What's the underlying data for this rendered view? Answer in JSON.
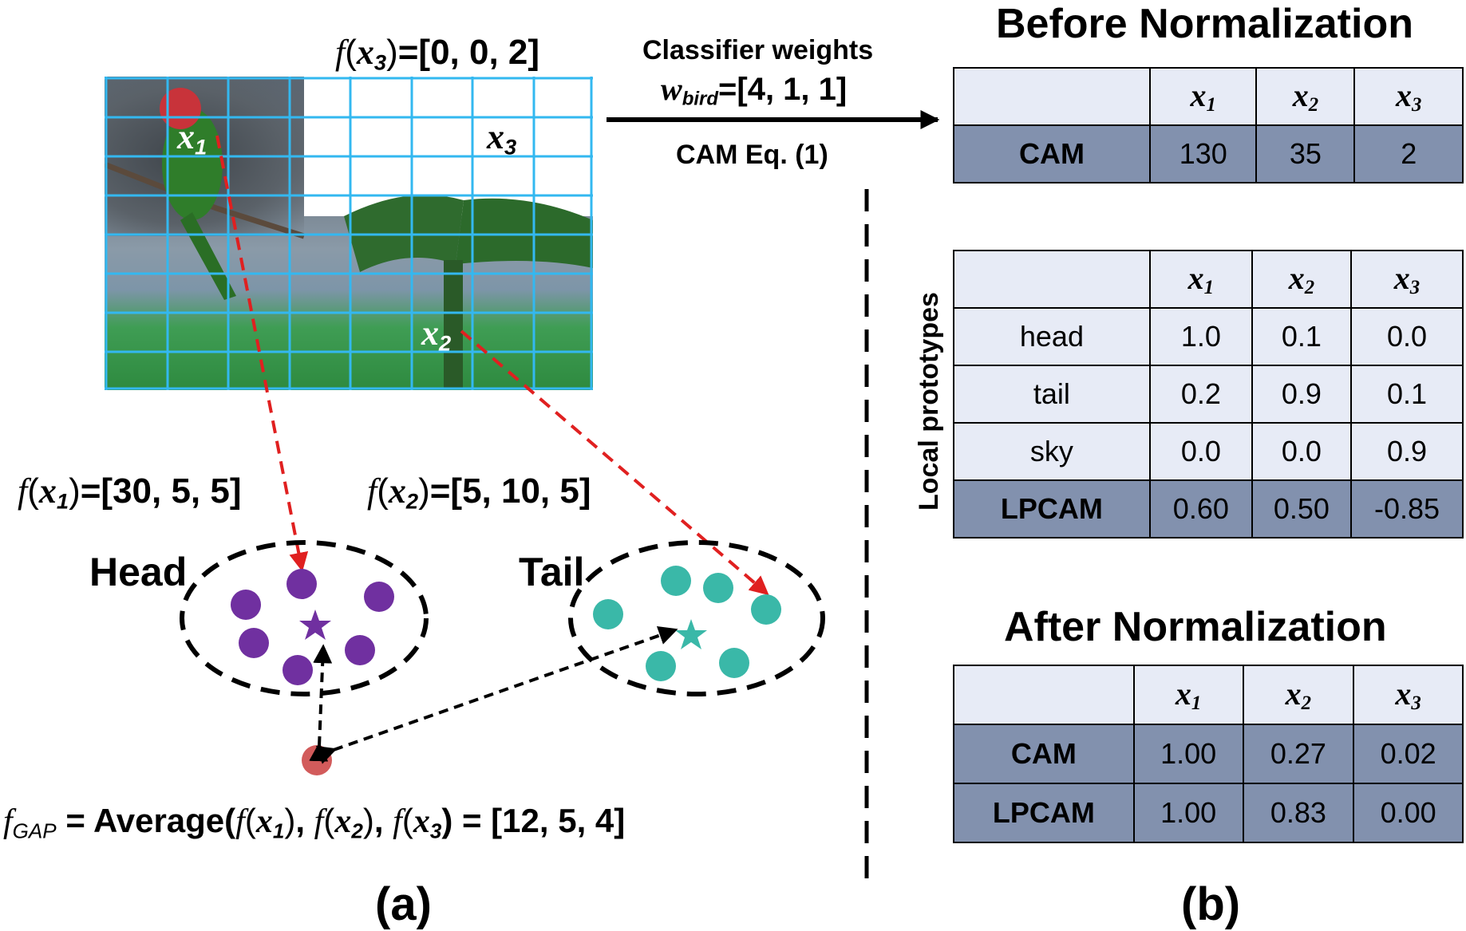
{
  "grid_features": {
    "f_x3": {
      "fn": "f",
      "var": "x",
      "sub": "3",
      "value": "=[0, 0, 2]"
    },
    "f_x1": {
      "fn": "f",
      "var": "x",
      "sub": "1",
      "value": "=[30, 5, 5]"
    },
    "f_x2": {
      "fn": "f",
      "var": "x",
      "sub": "2",
      "value": "=[5, 10, 5]"
    }
  },
  "image_labels": {
    "x1": {
      "var": "x",
      "sub": "1"
    },
    "x2": {
      "var": "x",
      "sub": "2"
    },
    "x3": {
      "var": "x",
      "sub": "3"
    }
  },
  "classifier": {
    "line1": "Classifier weights",
    "w_var": "w",
    "w_sub": "bird",
    "w_value": "=[4, 1, 1]",
    "eq": "CAM Eq. (1)"
  },
  "clusters": {
    "head_label": "Head",
    "tail_label": "Tail",
    "head_color": "#7030a0",
    "tail_color": "#3ab8a8",
    "gap_point_color": "#d25b5b",
    "dashed_arrow_color": "#e02020"
  },
  "gap_formula": {
    "lhs_var": "f",
    "lhs_sub": "GAP",
    "eq": " = Average(",
    "a1_fn": "f",
    "a1_var": "x",
    "a1_sub": "1",
    "a2_fn": "f",
    "a2_var": "x",
    "a2_sub": "2",
    "a3_fn": "f",
    "a3_var": "x",
    "a3_sub": "3",
    "sep": ", ",
    "open": "(",
    "close": ")",
    "end": ") = [12, 5, 4]"
  },
  "panel_labels": {
    "a": "(a)",
    "b": "(b)"
  },
  "before": {
    "title": "Before Normalization",
    "headers": [
      {
        "var": "x",
        "sub": "1"
      },
      {
        "var": "x",
        "sub": "2"
      },
      {
        "var": "x",
        "sub": "3"
      }
    ],
    "cam_row": {
      "label": "CAM",
      "values": [
        "130",
        "35",
        "2"
      ]
    }
  },
  "prototypes": {
    "side_label": "Local prototypes",
    "headers": [
      {
        "var": "x",
        "sub": "1"
      },
      {
        "var": "x",
        "sub": "2"
      },
      {
        "var": "x",
        "sub": "3"
      }
    ],
    "rows": [
      {
        "label": "head",
        "values": [
          "1.0",
          "0.1",
          "0.0"
        ]
      },
      {
        "label": "tail",
        "values": [
          "0.2",
          "0.9",
          "0.1"
        ]
      },
      {
        "label": "sky",
        "values": [
          "0.0",
          "0.0",
          "0.9"
        ]
      }
    ],
    "lpcam_row": {
      "label": "LPCAM",
      "values": [
        "0.60",
        "0.50",
        "-0.85"
      ]
    }
  },
  "after": {
    "title": "After Normalization",
    "headers": [
      {
        "var": "x",
        "sub": "1"
      },
      {
        "var": "x",
        "sub": "2"
      },
      {
        "var": "x",
        "sub": "3"
      }
    ],
    "rows": [
      {
        "label": "CAM",
        "values": [
          "1.00",
          "0.27",
          "0.02"
        ]
      },
      {
        "label": "LPCAM",
        "values": [
          "1.00",
          "0.83",
          "0.00"
        ]
      }
    ]
  }
}
